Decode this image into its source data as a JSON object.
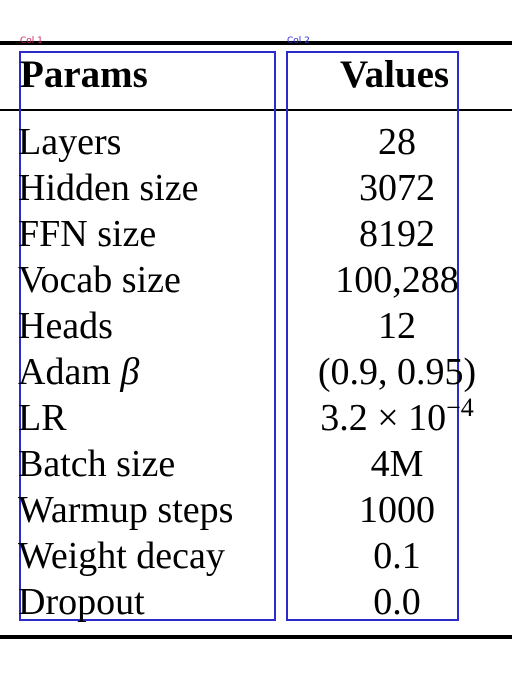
{
  "column_tags": [
    "Col 1",
    "Col 2"
  ],
  "header": {
    "params": "Params",
    "values": "Values"
  },
  "rows": [
    {
      "param": "Layers",
      "value": "28"
    },
    {
      "param": "Hidden size",
      "value": "3072"
    },
    {
      "param": "FFN size",
      "value": "8192"
    },
    {
      "param": "Vocab size",
      "value": "100,288"
    },
    {
      "param": "Heads",
      "value": "12"
    },
    {
      "param": "Adam",
      "symbol": "β",
      "value": "(0.9, 0.95)"
    },
    {
      "param": "LR",
      "value": "3.2 × 10",
      "exponent": "−4"
    },
    {
      "param": "Batch size",
      "value": "4M"
    },
    {
      "param": "Warmup steps",
      "value": "1000"
    },
    {
      "param": "Weight decay",
      "value": "0.1"
    },
    {
      "param": "Dropout",
      "value": "0.0"
    }
  ]
}
